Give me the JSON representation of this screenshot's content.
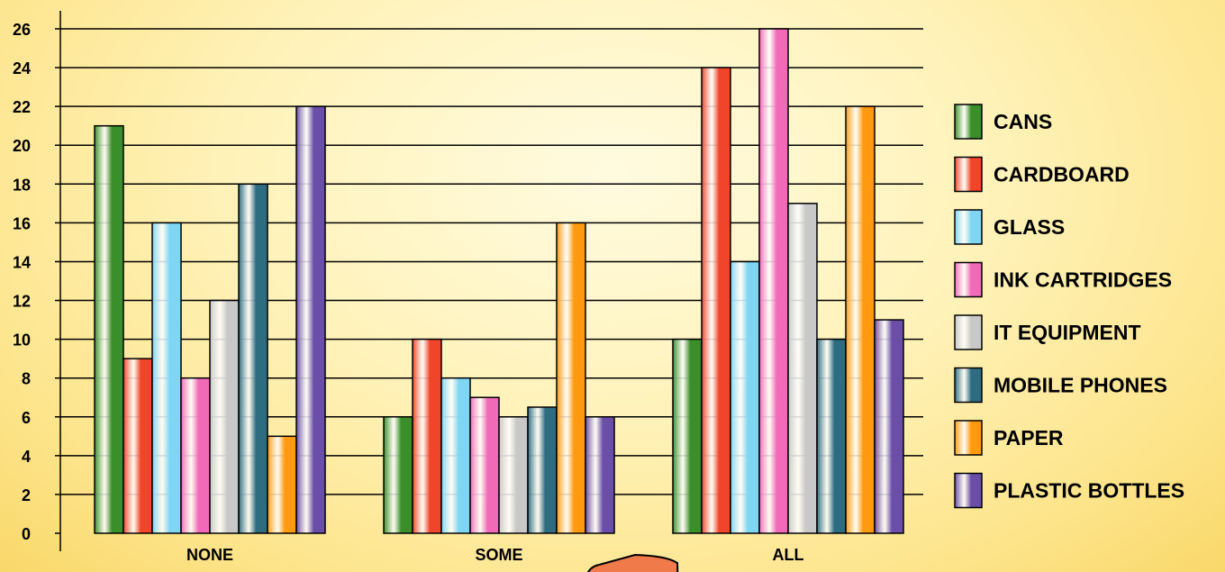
{
  "chart_data": {
    "type": "bar",
    "title": "",
    "xlabel": "",
    "ylabel": "",
    "categories": [
      "NONE",
      "SOME",
      "ALL"
    ],
    "ylim": [
      0,
      26
    ],
    "yticks": [
      0,
      2,
      4,
      6,
      8,
      10,
      12,
      14,
      16,
      18,
      20,
      22,
      24,
      26
    ],
    "grid": true,
    "legend_position": "right",
    "series": [
      {
        "name": "CANS",
        "values": [
          21,
          6,
          10
        ],
        "color": "#3a8f2a"
      },
      {
        "name": "CARDBOARD",
        "values": [
          9,
          10,
          24
        ],
        "color": "#f0452a"
      },
      {
        "name": "GLASS",
        "values": [
          16,
          8,
          14
        ],
        "color": "#7fd6f2"
      },
      {
        "name": "INK CARTRIDGES",
        "values": [
          8,
          7,
          26
        ],
        "color": "#f06ab8"
      },
      {
        "name": "IT EQUIPMENT",
        "values": [
          12,
          6,
          17
        ],
        "color": "#c8c8c8"
      },
      {
        "name": "MOBILE PHONES",
        "values": [
          18,
          6.5,
          10
        ],
        "color": "#2e6d80"
      },
      {
        "name": "PAPER",
        "values": [
          5,
          16,
          22
        ],
        "color": "#ff9a10"
      },
      {
        "name": "PLASTIC BOTTLES",
        "values": [
          22,
          6,
          11
        ],
        "color": "#6a4ea8"
      }
    ]
  }
}
